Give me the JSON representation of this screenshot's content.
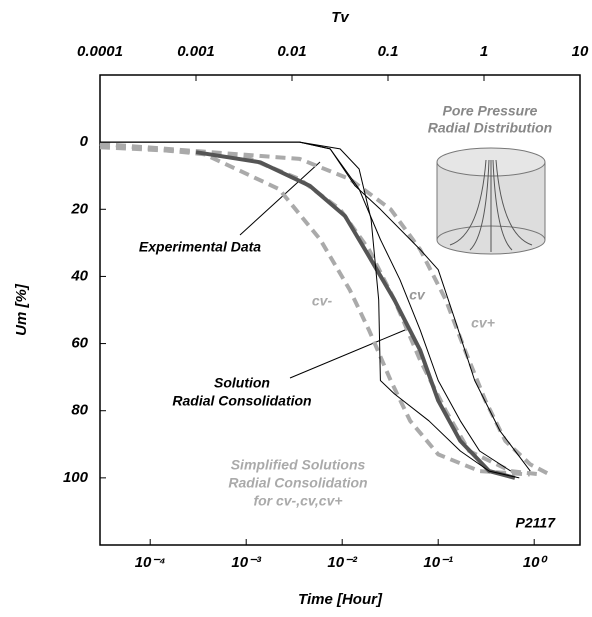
{
  "chart_data": {
    "type": "line",
    "x_label": "Time [Hour]",
    "y_label": "Um  [%]",
    "x2_label": "Tv",
    "xlim": [
      3e-05,
      3
    ],
    "x_log": true,
    "xticks": [
      {
        "value": 0.0001,
        "label": "10⁻⁴"
      },
      {
        "value": 0.001,
        "label": "10⁻³"
      },
      {
        "value": 0.01,
        "label": "10⁻²"
      },
      {
        "value": 0.1,
        "label": "10⁻¹"
      },
      {
        "value": 1,
        "label": "10⁰"
      }
    ],
    "x2lim": [
      0.0001,
      10
    ],
    "x2ticks": [
      0.0001,
      0.001,
      0.01,
      0.1,
      1,
      10
    ],
    "ylim": [
      -20,
      120
    ],
    "y_inverted": true,
    "yticks": [
      0,
      20,
      40,
      60,
      80,
      100
    ],
    "series": [
      {
        "name": "cv-",
        "color": "#aaaaaa",
        "dashed": true,
        "width": 4,
        "x": [
          3e-05,
          0.00033,
          0.0022,
          0.0059,
          0.012,
          0.019,
          0.032,
          0.051,
          0.1,
          0.27,
          0.9
        ],
        "values": [
          1.5,
          3,
          14,
          29,
          44,
          56,
          71,
          83,
          93,
          98,
          99
        ]
      },
      {
        "name": "cv",
        "color": "#aaaaaa",
        "dashed": true,
        "width": 4,
        "x": [
          3e-05,
          0.0011,
          0.0036,
          0.0095,
          0.019,
          0.035,
          0.065,
          0.12,
          0.21,
          0.57,
          1.2
        ],
        "values": [
          0.5,
          5,
          11,
          20,
          32,
          47,
          65,
          80,
          92,
          98,
          99
        ]
      },
      {
        "name": "cv+",
        "color": "#aaaaaa",
        "dashed": true,
        "width": 4,
        "x": [
          3e-05,
          0.0036,
          0.012,
          0.032,
          0.065,
          0.12,
          0.19,
          0.31,
          0.5,
          0.91,
          1.45
        ],
        "values": [
          0.5,
          5,
          11,
          20,
          32,
          47,
          62,
          77,
          89,
          96,
          99
        ]
      },
      {
        "color": "#555555",
        "dashed": false,
        "width": 4,
        "x": [
          0.0003,
          0.0014,
          0.0046,
          0.0107,
          0.019,
          0.035,
          0.065,
          0.1,
          0.17,
          0.34,
          0.63
        ],
        "values": [
          3,
          6,
          13,
          22,
          34,
          47,
          62,
          77,
          89,
          98,
          100
        ]
      },
      {
        "color": "#000000",
        "dashed": false,
        "width": 1,
        "x": [
          3e-05,
          0.0036,
          0.0095,
          0.015,
          0.02,
          0.024,
          0.025,
          0.035,
          0.08,
          0.17,
          0.34,
          0.7
        ],
        "values": [
          0,
          0,
          2,
          8,
          23,
          47,
          71,
          75,
          83,
          92,
          98,
          100
        ]
      },
      {
        "color": "#000000",
        "dashed": false,
        "width": 1,
        "x": [
          3e-05,
          0.0036,
          0.0075,
          0.015,
          0.025,
          0.04,
          0.065,
          0.1,
          0.17,
          0.27,
          0.57
        ],
        "values": [
          0,
          0,
          2,
          14,
          29,
          41,
          56,
          71,
          83,
          92,
          98
        ]
      },
      {
        "color": "#000000",
        "dashed": false,
        "width": 1,
        "x": [
          3e-05,
          0.0036,
          0.0075,
          0.0136,
          0.025,
          0.065,
          0.1,
          0.15,
          0.24,
          0.44,
          0.91
        ],
        "values": [
          0,
          0,
          2,
          13,
          20,
          32,
          38,
          53,
          71,
          86,
          98
        ]
      }
    ],
    "annotations": {
      "experimental": "Experimental Data",
      "solution": [
        "Solution",
        "Radial Consolidation"
      ],
      "simplified": [
        "Simplified  Solutions",
        "Radial Consolidation",
        "for cv-,cv,cv+"
      ],
      "sample": "P2117",
      "pore": [
        "Pore Pressure",
        "Radial Distribution"
      ]
    }
  }
}
